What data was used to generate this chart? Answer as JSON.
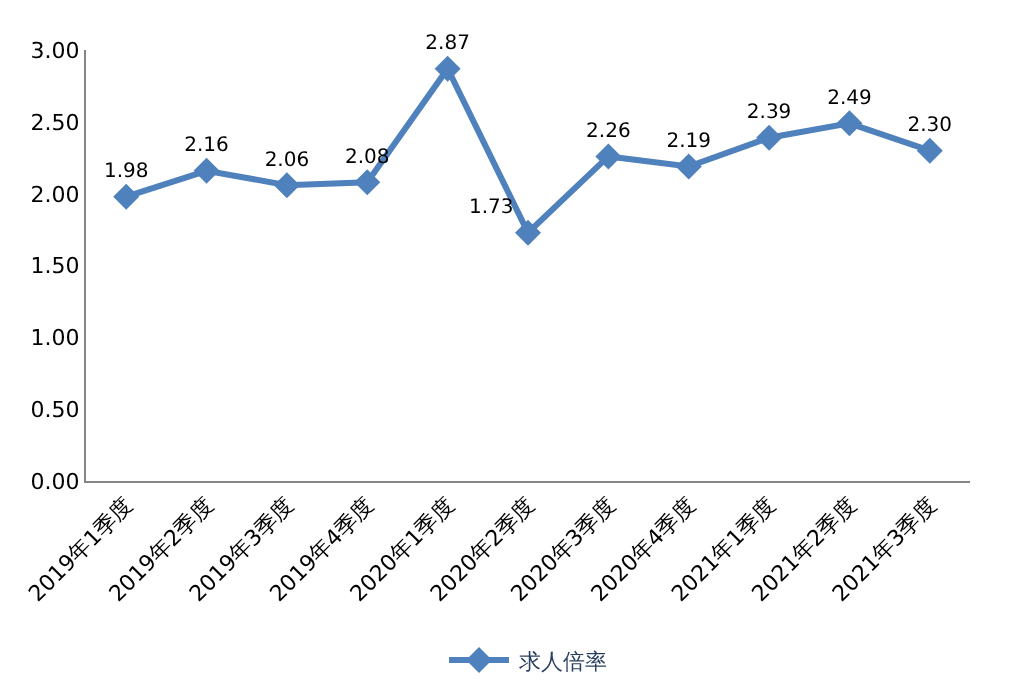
{
  "chart_data": {
    "type": "line",
    "categories": [
      "2019年1季度",
      "2019年2季度",
      "2019年3季度",
      "2019年4季度",
      "2020年1季度",
      "2020年2季度",
      "2020年3季度",
      "2020年4季度",
      "2021年1季度",
      "2021年2季度",
      "2021年3季度"
    ],
    "series": [
      {
        "name": "求人倍率",
        "color": "#4f81bd",
        "values": [
          1.98,
          2.16,
          2.06,
          2.08,
          2.87,
          1.73,
          2.26,
          2.19,
          2.39,
          2.49,
          2.3
        ],
        "value_labels": [
          "1.98",
          "2.16",
          "2.06",
          "2.08",
          "2.87",
          "1.73",
          "2.26",
          "2.19",
          "2.39",
          "2.49",
          "2.30"
        ]
      }
    ],
    "ylim": [
      0,
      3
    ],
    "yticks": [
      {
        "value": 0,
        "label": "0.00"
      },
      {
        "value": 0.5,
        "label": "0.50"
      },
      {
        "value": 1,
        "label": "1.00"
      },
      {
        "value": 1.5,
        "label": "1.50"
      },
      {
        "value": 2,
        "label": "2.00"
      },
      {
        "value": 2.5,
        "label": "2.50"
      },
      {
        "value": 3,
        "label": "3.00"
      }
    ],
    "legend": "bottom",
    "marker": "diamond",
    "line_style": "solid"
  }
}
